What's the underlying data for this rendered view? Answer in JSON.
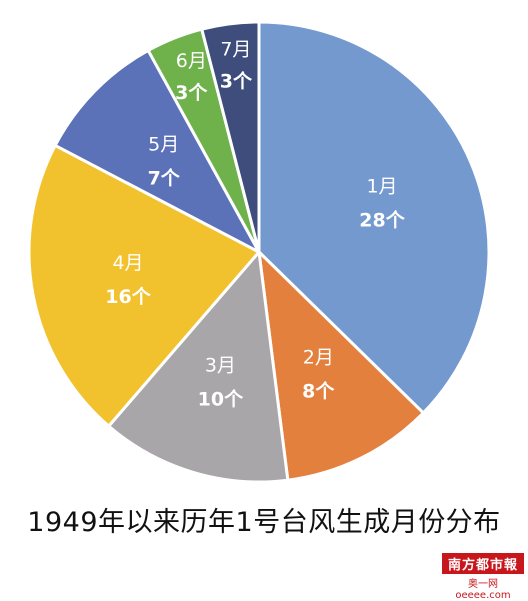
{
  "chart_data": {
    "type": "pie",
    "title": "1949年以来历年1号台风生成月份分布",
    "start": "12-o'clock",
    "direction": "clockwise",
    "slices": [
      {
        "month": "1月",
        "count": 28,
        "count_label": "28个",
        "color": "#7399cf"
      },
      {
        "month": "2月",
        "count": 8,
        "count_label": "8个",
        "color": "#e3803e"
      },
      {
        "month": "3月",
        "count": 10,
        "count_label": "10个",
        "color": "#a9a6aa"
      },
      {
        "month": "4月",
        "count": 16,
        "count_label": "16个",
        "color": "#f2c22e"
      },
      {
        "month": "5月",
        "count": 7,
        "count_label": "7个",
        "color": "#5b72b8"
      },
      {
        "month": "6月",
        "count": 3,
        "count_label": "3个",
        "color": "#6fb14a"
      },
      {
        "month": "7月",
        "count": 3,
        "count_label": "3个",
        "color": "#3e4d7c"
      }
    ]
  },
  "watermark": {
    "logo_text": "南方都市報",
    "url_text": "奥一网oeeee.com"
  }
}
